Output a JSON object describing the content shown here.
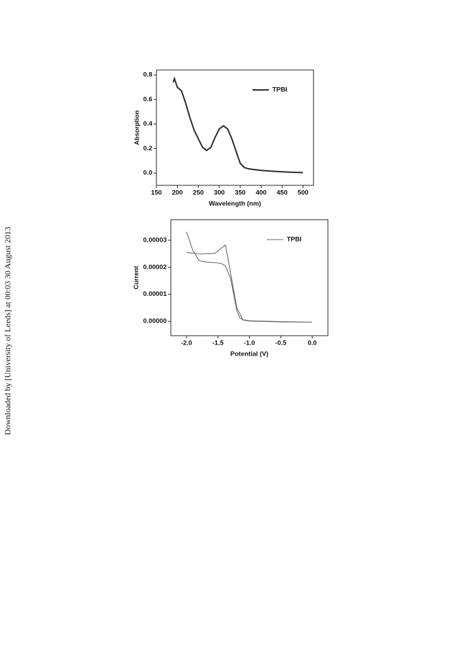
{
  "side_note": "Downloaded by [University of Leeds] at 00:03 30 August 2013",
  "chart_data": [
    {
      "type": "line",
      "xlabel": "Wavelength (nm)",
      "ylabel": "Absorption",
      "xlim": [
        150,
        525
      ],
      "xticks": [
        150,
        200,
        250,
        300,
        350,
        400,
        450,
        500
      ],
      "ylim": [
        -0.1,
        0.84
      ],
      "yticks": [
        {
          "value": 0,
          "label": "0.0"
        },
        0.2,
        0.4,
        0.6,
        0.8
      ],
      "legend": "top-right",
      "series": [
        {
          "name": "TPBI",
          "color": "#2a2a2a",
          "x": [
            190,
            193,
            197,
            200,
            210,
            220,
            230,
            240,
            250,
            260,
            270,
            280,
            290,
            300,
            310,
            320,
            330,
            340,
            350,
            360,
            370,
            380,
            400,
            420,
            450,
            480,
            500
          ],
          "values": [
            0.74,
            0.77,
            0.73,
            0.7,
            0.67,
            0.57,
            0.45,
            0.35,
            0.28,
            0.21,
            0.185,
            0.21,
            0.29,
            0.36,
            0.385,
            0.36,
            0.28,
            0.18,
            0.08,
            0.045,
            0.035,
            0.03,
            0.022,
            0.017,
            0.01,
            0.006,
            0.004
          ]
        }
      ]
    },
    {
      "type": "line",
      "xlabel": "Potential (V)",
      "ylabel": "Current",
      "xlim": [
        -2.25,
        0.25
      ],
      "xticks": [
        {
          "value": -2,
          "label": "-2.0"
        },
        -1.5,
        {
          "value": -1,
          "label": "-1.0"
        },
        -0.5,
        {
          "value": 0,
          "label": "0.0"
        }
      ],
      "ylim": [
        -5.3e-06,
        3.76e-05
      ],
      "yticks": [
        {
          "value": 0,
          "label": "0.00000"
        },
        {
          "value": 1e-05,
          "label": "0.00001"
        },
        {
          "value": 2e-05,
          "label": "0.00002"
        },
        {
          "value": 3e-05,
          "label": "0.00003"
        }
      ],
      "legend": "top-right",
      "series": [
        {
          "name": "TPBI",
          "color": "#666666",
          "x": [
            -2.0,
            -1.9,
            -1.8,
            -1.7,
            -1.5,
            -1.45,
            -1.38,
            -1.3,
            -1.2,
            -1.15,
            -1.1,
            -1.0,
            -0.5,
            0.0,
            -0.5,
            -1.0,
            -1.1,
            -1.2,
            -1.3,
            -1.38,
            -1.45,
            -1.55,
            -1.8,
            -2.0
          ],
          "values": [
            3.31e-05,
            2.62e-05,
            2.25e-05,
            2.19e-05,
            2.16e-05,
            2.14e-05,
            2.05e-05,
            1.6e-05,
            4e-06,
            1.2e-06,
            6e-07,
            2e-07,
            -1e-07,
            -3e-07,
            -2e-07,
            1e-07,
            5e-07,
            5e-06,
            1.8e-05,
            2.82e-05,
            2.7e-05,
            2.51e-05,
            2.49e-05,
            2.55e-05
          ]
        }
      ]
    }
  ]
}
